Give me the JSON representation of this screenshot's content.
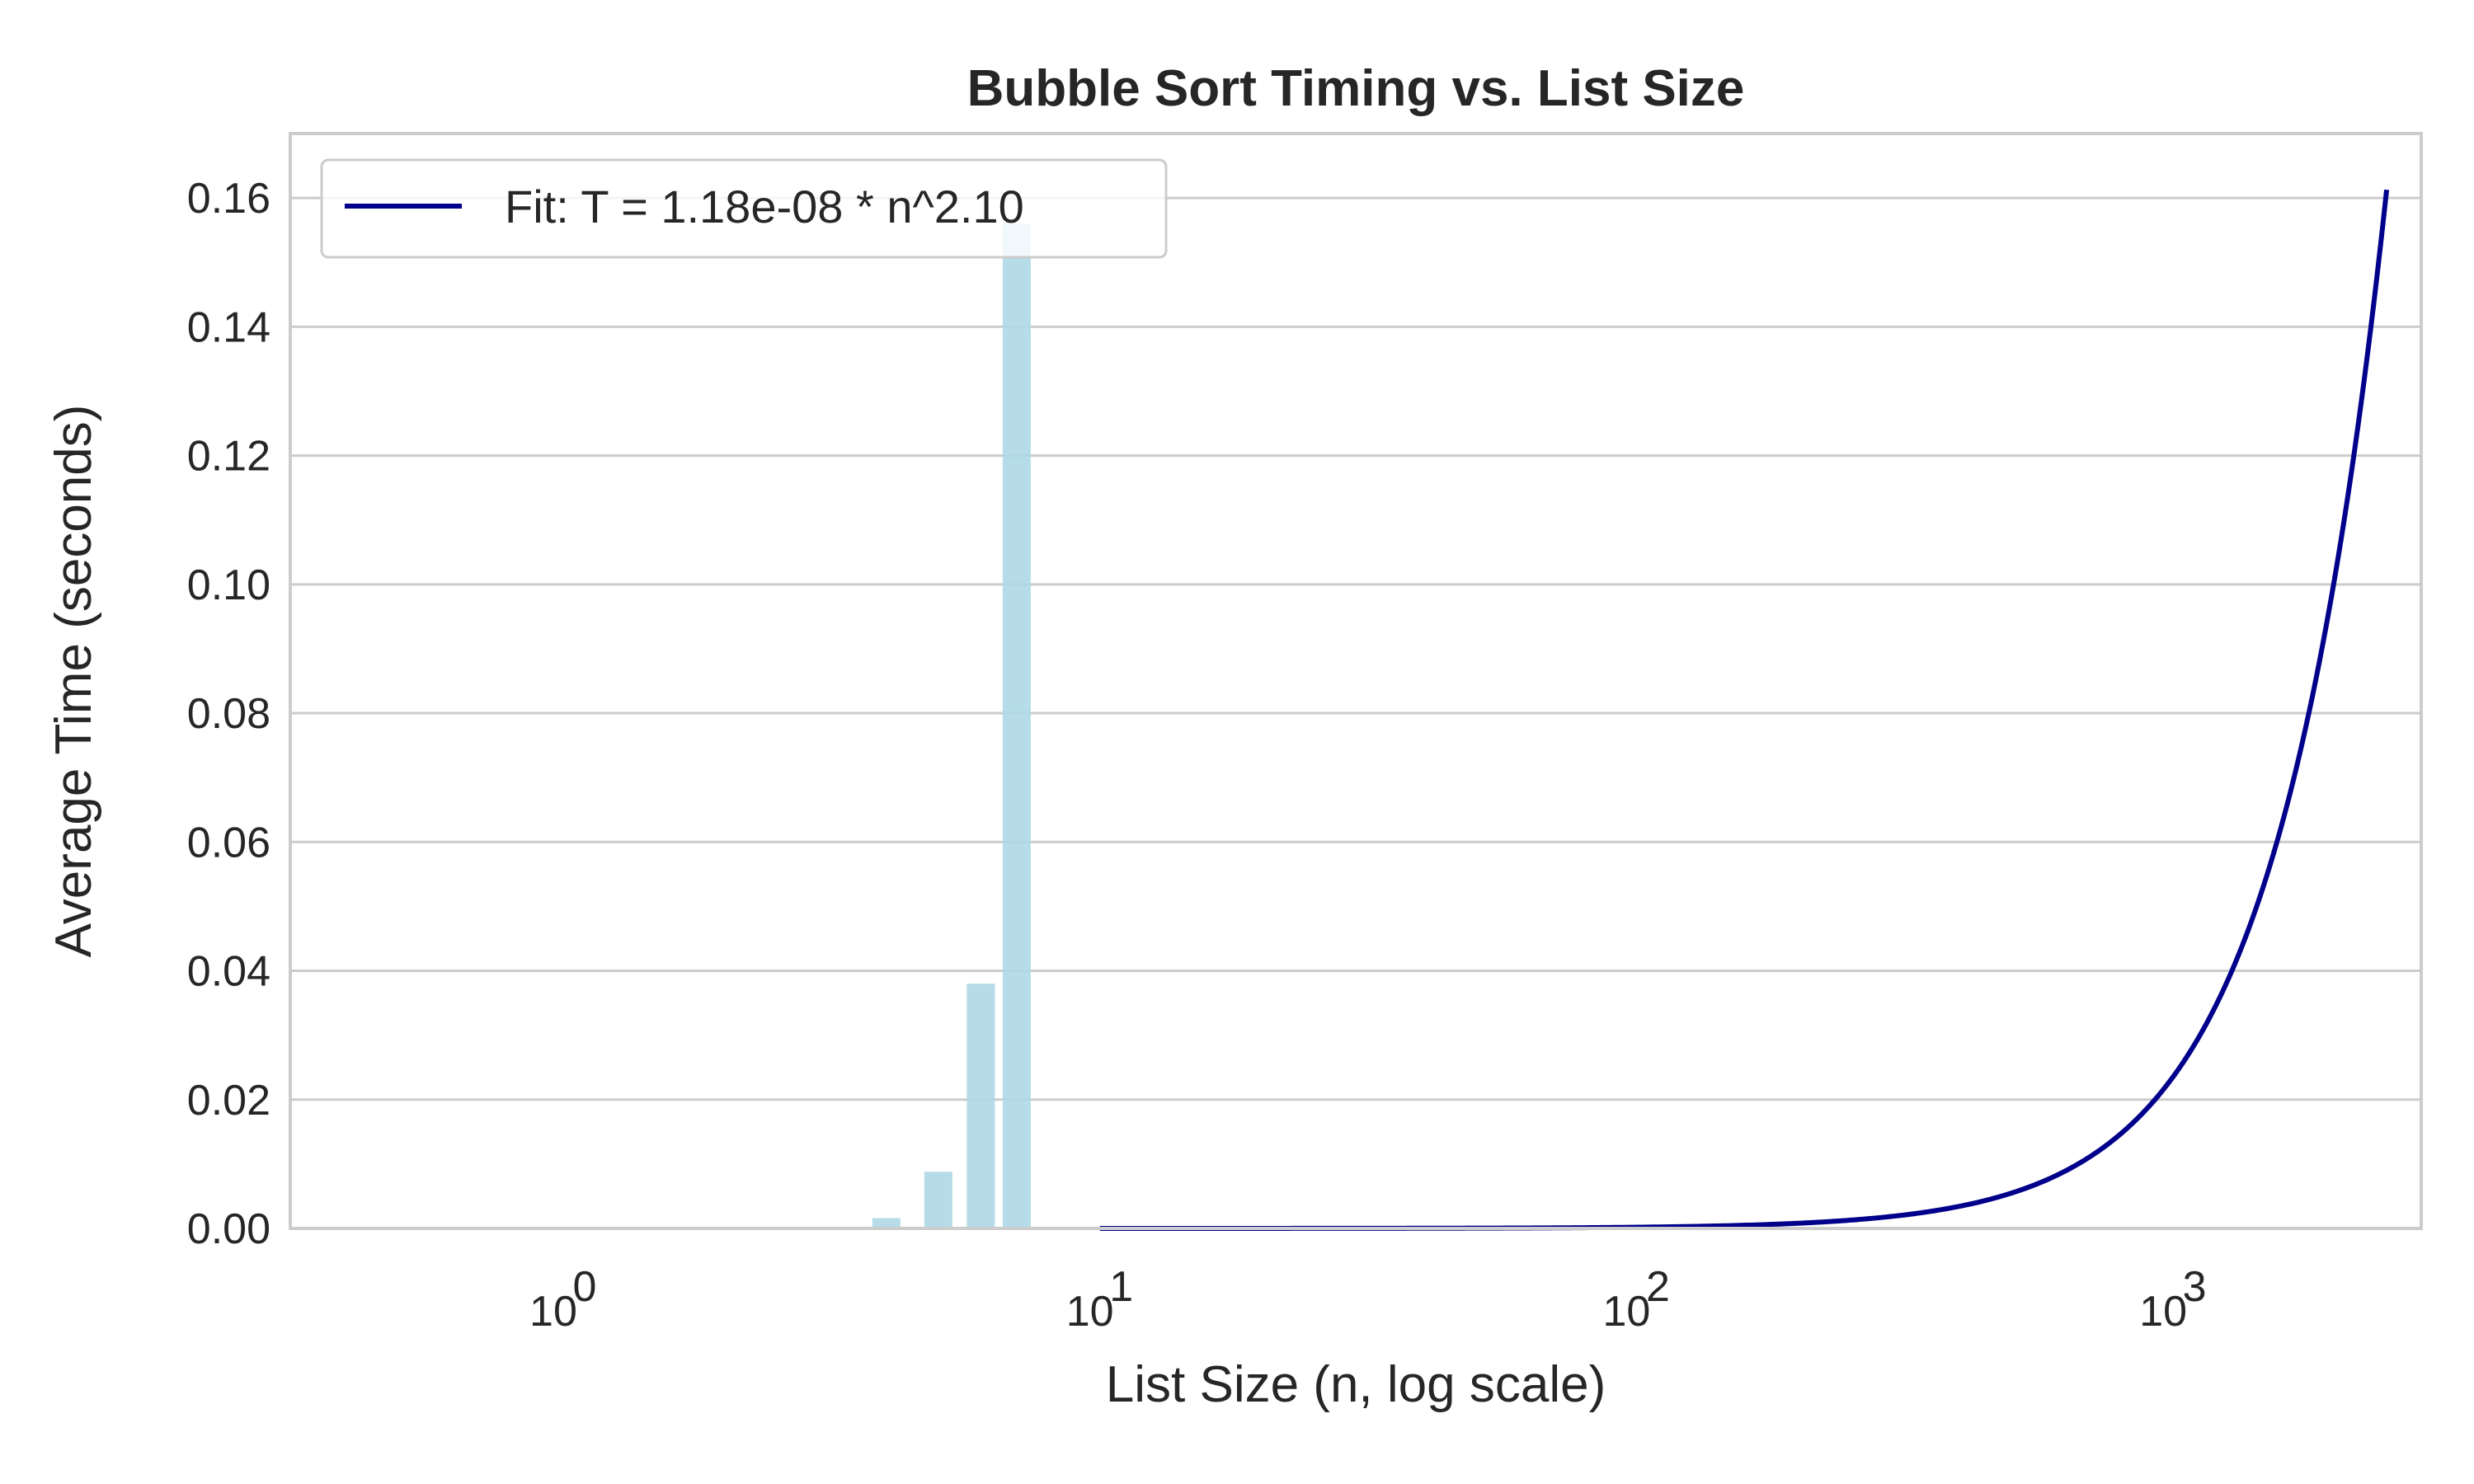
{
  "chart_data": {
    "type": "bar",
    "title": "Bubble Sort Timing vs. List Size",
    "xlabel": "List Size (n, log scale)",
    "ylabel": "Average Time (seconds)",
    "x_scale": "log",
    "xlim": [
      0.31,
      2900
    ],
    "ylim": [
      0,
      0.17
    ],
    "grid": {
      "y": true,
      "x": false
    },
    "y_ticks": [
      "0.00",
      "0.02",
      "0.04",
      "0.06",
      "0.08",
      "0.10",
      "0.12",
      "0.14",
      "0.16"
    ],
    "x_ticks": [
      {
        "value": 1,
        "base": "10",
        "exp": "0"
      },
      {
        "value": 10,
        "base": "10",
        "exp": "1"
      },
      {
        "value": 100,
        "base": "10",
        "exp": "2"
      },
      {
        "value": 1000,
        "base": "10",
        "exp": "3"
      }
    ],
    "bars": {
      "x": [
        4,
        5,
        6,
        7
      ],
      "values": [
        0.0016,
        0.0088,
        0.038,
        0.156
      ],
      "color": "#add8e6"
    },
    "fit": {
      "name": "Fit: T = 1.18e-08 * n^2.10",
      "coefficient": 1.18e-08,
      "exponent": 2.1,
      "x_start": 10,
      "x_end": 2500,
      "color": "#00008b"
    },
    "legend_position": "upper-left",
    "colors": {
      "grid": "#cccccc",
      "frame": "#cccccc",
      "text": "#262626"
    }
  }
}
